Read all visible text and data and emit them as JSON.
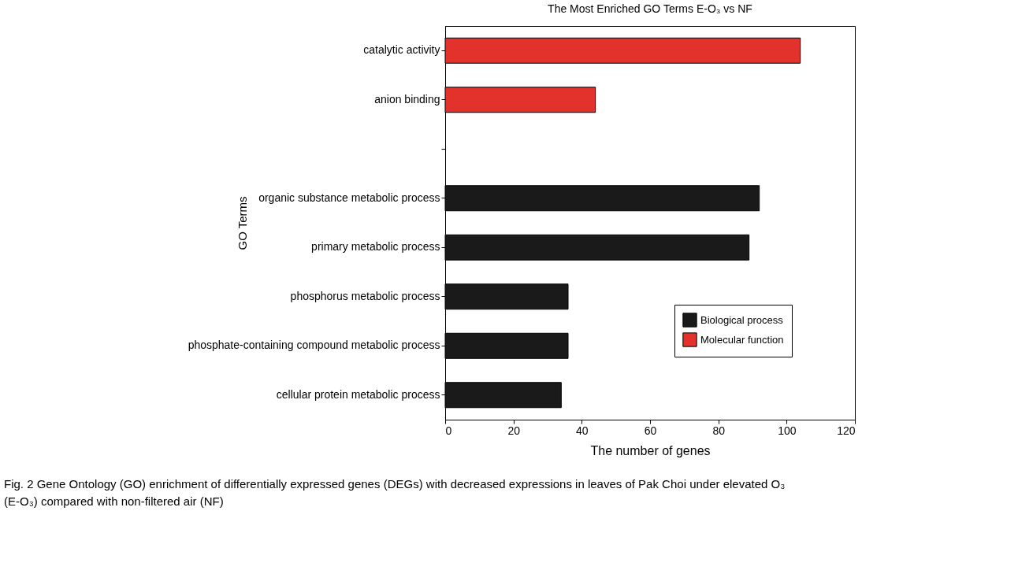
{
  "chart_data": {
    "type": "bar",
    "orientation": "horizontal",
    "title": "The Most Enriched GO Terms E-O₃ vs NF",
    "xlabel": "The number of genes",
    "ylabel": "GO Terms",
    "categories": [
      "catalytic activity",
      "anion binding",
      null,
      "organic substance metabolic process",
      "primary metabolic process",
      "phosphorus metabolic process",
      "phosphate-containing compound metabolic process",
      "cellular protein metabolic process"
    ],
    "series": [
      {
        "name": "Biological process",
        "color": "#1a1a1a",
        "values": [
          null,
          null,
          null,
          92,
          89,
          36,
          36,
          34
        ]
      },
      {
        "name": "Molecular function",
        "color": "#e3312b",
        "values": [
          104,
          44,
          null,
          null,
          null,
          null,
          null,
          null
        ]
      }
    ],
    "xlim": [
      0,
      120
    ],
    "xticks": [
      0,
      20,
      40,
      60,
      80,
      100,
      120
    ],
    "grid": false,
    "legend": "bottom right",
    "annotations": [
      "Fig. 2 Gene Ontology (GO) enrichment of differentially expressed genes (DEGs) with decreased expressions in leaves of Pak Choi under elevated O₃ (E-O₃) compared with non-filtered air (NF)"
    ]
  }
}
